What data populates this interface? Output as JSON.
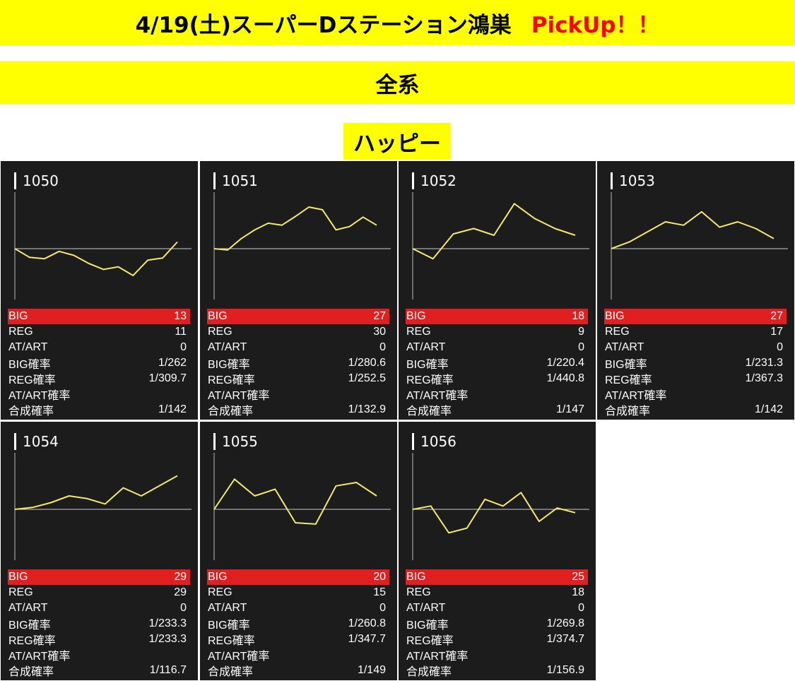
{
  "header": {
    "title": "4/19(土)スーパーDステーション鴻巣",
    "pickup": "PickUp！！",
    "subtitle": "全系",
    "section": "ハッピー"
  },
  "labels": {
    "big": "BIG",
    "reg": "REG",
    "at": "AT/ART",
    "big_rate": "BIG確率",
    "reg_rate": "REG確率",
    "at_rate": "AT/ART確率",
    "total_rate": "合成確率"
  },
  "colors": {
    "line": "#f5e96a",
    "big_bar": "#e02020",
    "panel": "#1c1c1c",
    "banner": "#ffff00"
  },
  "chart_data": [
    {
      "type": "line",
      "title": "1050",
      "values": [
        0,
        -0.13,
        -0.15,
        -0.04,
        -0.1,
        -0.22,
        -0.31,
        -0.27,
        -0.4,
        -0.17,
        -0.14,
        0.1
      ],
      "stats": {
        "big": "13",
        "reg": "11",
        "at": "0",
        "big_rate": "1/262",
        "reg_rate": "1/309.7",
        "at_rate": "",
        "total_rate": "1/142"
      }
    },
    {
      "type": "line",
      "title": "1051",
      "values": [
        0,
        -0.02,
        0.15,
        0.28,
        0.38,
        0.35,
        0.48,
        0.62,
        0.58,
        0.28,
        0.33,
        0.47,
        0.35
      ],
      "stats": {
        "big": "27",
        "reg": "30",
        "at": "0",
        "big_rate": "1/280.6",
        "reg_rate": "1/252.5",
        "at_rate": "",
        "total_rate": "1/132.9"
      }
    },
    {
      "type": "line",
      "title": "1052",
      "values": [
        0,
        -0.15,
        0.22,
        0.3,
        0.2,
        0.67,
        0.45,
        0.3,
        0.2
      ],
      "stats": {
        "big": "18",
        "reg": "9",
        "at": "0",
        "big_rate": "1/220.4",
        "reg_rate": "1/440.8",
        "at_rate": "",
        "total_rate": "1/147"
      }
    },
    {
      "type": "line",
      "title": "1053",
      "values": [
        0,
        0.1,
        0.25,
        0.4,
        0.35,
        0.55,
        0.32,
        0.4,
        0.3,
        0.15
      ],
      "stats": {
        "big": "27",
        "reg": "17",
        "at": "0",
        "big_rate": "1/231.3",
        "reg_rate": "1/367.3",
        "at_rate": "",
        "total_rate": "1/142"
      }
    },
    {
      "type": "line",
      "title": "1054",
      "values": [
        0,
        0.03,
        0.1,
        0.2,
        0.16,
        0.08,
        0.32,
        0.2,
        0.35,
        0.5
      ],
      "stats": {
        "big": "29",
        "reg": "29",
        "at": "0",
        "big_rate": "1/233.3",
        "reg_rate": "1/233.3",
        "at_rate": "",
        "total_rate": "1/116.7"
      }
    },
    {
      "type": "line",
      "title": "1055",
      "values": [
        0,
        0.45,
        0.2,
        0.3,
        -0.2,
        -0.22,
        0.35,
        0.4,
        0.2
      ],
      "stats": {
        "big": "20",
        "reg": "15",
        "at": "0",
        "big_rate": "1/260.8",
        "reg_rate": "1/347.7",
        "at_rate": "",
        "total_rate": "1/149"
      }
    },
    {
      "type": "line",
      "title": "1056",
      "values": [
        0,
        0.05,
        -0.35,
        -0.28,
        0.15,
        0.05,
        0.25,
        -0.18,
        0.02,
        -0.05
      ],
      "stats": {
        "big": "25",
        "reg": "18",
        "at": "0",
        "big_rate": "1/269.8",
        "reg_rate": "1/374.7",
        "at_rate": "",
        "total_rate": "1/156.9"
      }
    }
  ]
}
